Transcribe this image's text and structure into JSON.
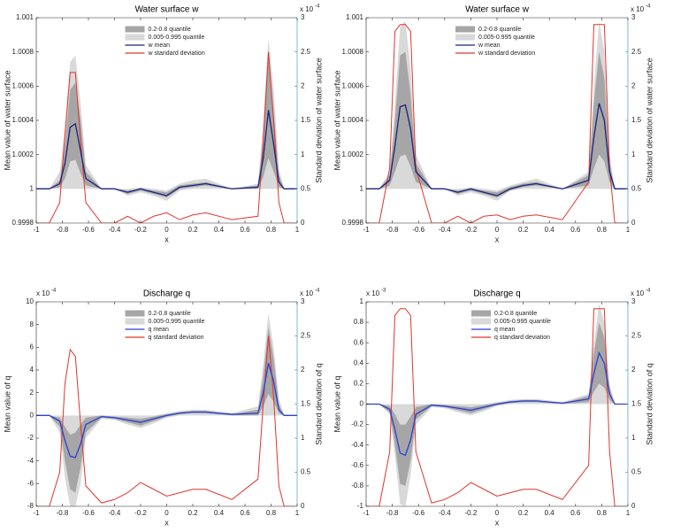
{
  "chart_data": [
    {
      "type": "line",
      "title": "Water surface w",
      "xlabel": "x",
      "ylabel": "Mean value of water surface",
      "y2label": "Standard deviation of water surface",
      "y2_multiplier": "x 10",
      "y2_exponent": "-4",
      "y2_color": "#2e86c1",
      "legend": "upper-center",
      "xlim": [
        -1,
        1
      ],
      "xticks": [
        -1,
        -0.8,
        -0.6,
        -0.4,
        -0.2,
        0,
        0.2,
        0.4,
        0.6,
        0.8,
        1
      ],
      "ylim": [
        0.9998,
        1.001
      ],
      "yticks": [
        0.9998,
        1,
        1.0002,
        1.0004,
        1.0006,
        1.0008,
        1.001
      ],
      "y2lim": [
        0,
        3
      ],
      "y2ticks": [
        0,
        0.5,
        1,
        1.5,
        2,
        2.5,
        3
      ],
      "x": [
        -1,
        -0.9,
        -0.82,
        -0.78,
        -0.74,
        -0.7,
        -0.66,
        -0.62,
        -0.5,
        -0.4,
        -0.3,
        -0.2,
        -0.1,
        0,
        0.1,
        0.2,
        0.3,
        0.5,
        0.7,
        0.74,
        0.78,
        0.82,
        0.86,
        0.9,
        1
      ],
      "series": [
        {
          "name": "0.2-0.8 quantile",
          "type": "band",
          "color": "#a6a6a6",
          "upper": [
            1,
            1,
            1.00005,
            1.00025,
            1.00058,
            1.00062,
            1.0004,
            1.0001,
            1,
            1,
            0.99999,
            1,
            0.99999,
            0.99998,
            1.00002,
            1.00003,
            1.00004,
            1,
            1.00002,
            1.0003,
            1.00076,
            1.00045,
            1.00008,
            1,
            1
          ],
          "lower": [
            1,
            1,
            1.00001,
            1.00006,
            1.00016,
            1.00017,
            1.00009,
            1.00002,
            1,
            1,
            0.99997,
            0.99999,
            0.99997,
            0.99995,
            1,
            1.00001,
            1.00002,
            1,
            1,
            1.00007,
            1.00018,
            1.0001,
            1.00001,
            1,
            1
          ]
        },
        {
          "name": "0.005-0.995 quantile",
          "type": "band",
          "color": "#d9d9d9",
          "upper": [
            1,
            1,
            1.0001,
            1.00035,
            1.00074,
            1.00078,
            1.0005,
            1.00014,
            1,
            1,
            1,
            1.00001,
            1,
            0.99999,
            1.00003,
            1.00005,
            1.00006,
            1,
            1.00003,
            1.0004,
            1.00088,
            1.00058,
            1.00012,
            1,
            1
          ],
          "lower": [
            1,
            1,
            1,
            1,
            1,
            1,
            1,
            1,
            1,
            1,
            0.99996,
            0.99998,
            0.99996,
            0.99993,
            0.99999,
            1,
            1,
            1,
            1,
            1,
            1,
            1,
            1,
            1,
            1
          ]
        },
        {
          "name": "w mean",
          "color": "#1a237e",
          "values": [
            1,
            1,
            1.00003,
            1.00015,
            1.00036,
            1.00038,
            1.00022,
            1.00006,
            1,
            1,
            0.99998,
            1,
            0.99998,
            0.99996,
            1.00001,
            1.00002,
            1.00003,
            1,
            1.00001,
            1.00018,
            1.00046,
            1.00026,
            1.00004,
            1,
            1
          ]
        },
        {
          "name": "w standard deviation",
          "color": "#e0352b",
          "axis": "y2",
          "values": [
            0,
            0,
            0.3,
            1.3,
            2.2,
            2.2,
            1.2,
            0.3,
            0,
            0,
            0.1,
            0,
            0.1,
            0.15,
            0.05,
            0.12,
            0.15,
            0.05,
            0.1,
            1.2,
            2.5,
            1.5,
            0.3,
            0,
            0
          ]
        }
      ]
    },
    {
      "type": "line",
      "title": "Water surface w",
      "xlabel": "x",
      "ylabel": "Mean value of water surface",
      "y2label": "Standard deviation of water surface",
      "y2_multiplier": "x 10",
      "y2_exponent": "-4",
      "y2_color": "#2e86c1",
      "legend": "upper-center",
      "xlim": [
        -1,
        1
      ],
      "xticks": [
        -1,
        -0.8,
        -0.6,
        -0.4,
        -0.2,
        0,
        0.2,
        0.4,
        0.6,
        0.8,
        1
      ],
      "ylim": [
        0.9998,
        1.001
      ],
      "yticks": [
        0.9998,
        1,
        1.0002,
        1.0004,
        1.0006,
        1.0008,
        1.001
      ],
      "y2lim": [
        0,
        3
      ],
      "y2ticks": [
        0,
        0.5,
        1,
        1.5,
        2,
        2.5,
        3
      ],
      "x": [
        -1,
        -0.9,
        -0.82,
        -0.78,
        -0.74,
        -0.7,
        -0.66,
        -0.62,
        -0.5,
        -0.4,
        -0.3,
        -0.2,
        -0.1,
        0,
        0.1,
        0.2,
        0.3,
        0.5,
        0.7,
        0.74,
        0.78,
        0.82,
        0.86,
        0.9,
        1
      ],
      "series": [
        {
          "name": "0.2-0.8 quantile",
          "type": "band",
          "color": "#a6a6a6",
          "upper": [
            1,
            1,
            1.00008,
            1.0004,
            1.00078,
            1.0008,
            1.00055,
            1.00015,
            1,
            1,
            0.99999,
            1,
            0.99999,
            0.99998,
            1.00001,
            1.00003,
            1.00004,
            1,
            1.00008,
            1.0005,
            1.0008,
            1.00065,
            1.00015,
            1,
            1
          ],
          "lower": [
            1,
            1,
            1.00002,
            1.0001,
            1.00019,
            1.0002,
            1.00013,
            1.00004,
            1,
            1,
            0.99997,
            0.99999,
            0.99997,
            0.99995,
            0.99999,
            1.00001,
            1.00002,
            1,
            1.00002,
            1.00012,
            1.0002,
            1.00016,
            1.00004,
            1,
            1
          ]
        },
        {
          "name": "0.005-0.995 quantile",
          "type": "band",
          "color": "#d9d9d9",
          "upper": [
            1,
            1,
            1.0001,
            1.0005,
            1.00095,
            1.00098,
            1.0007,
            1.0002,
            1,
            1,
            1,
            1.00001,
            1,
            0.99999,
            1.00002,
            1.00004,
            1.00006,
            1,
            1.0001,
            1.0006,
            1.00098,
            1.0008,
            1.0002,
            1,
            1
          ],
          "lower": [
            1,
            1,
            1,
            1,
            1,
            1,
            1,
            1,
            1,
            1,
            0.99996,
            0.99998,
            0.99996,
            0.99993,
            0.99999,
            1,
            1,
            1,
            1,
            1,
            1,
            1,
            1,
            1,
            1
          ]
        },
        {
          "name": "w mean",
          "color": "#1a237e",
          "values": [
            1,
            1,
            1.00005,
            1.00025,
            1.00048,
            1.00049,
            1.00035,
            1.0001,
            1,
            1,
            0.99998,
            1,
            0.99998,
            0.99996,
            1,
            1.00002,
            1.00003,
            1,
            1.00005,
            1.0003,
            1.0005,
            1.0004,
            1.0001,
            1,
            1
          ]
        },
        {
          "name": "w standard deviation",
          "color": "#e0352b",
          "axis": "y2",
          "values": [
            0,
            0,
            0.8,
            2.8,
            2.9,
            2.9,
            2.8,
            0.8,
            0,
            0,
            0.1,
            0,
            0.1,
            0.12,
            0.05,
            0.1,
            0.12,
            0.05,
            0.6,
            2.9,
            2.9,
            2.9,
            0.8,
            0,
            0
          ]
        }
      ]
    },
    {
      "type": "line",
      "title": "Discharge q",
      "xlabel": "x",
      "ylabel": "Mean value of q",
      "y2label": "Standard deviation of q",
      "y_multiplier": "x 10",
      "y_exponent": "-4",
      "y2_multiplier": "x 10",
      "y2_exponent": "-4",
      "y2_color": "#2e86c1",
      "legend": "upper-center",
      "xlim": [
        -1,
        1
      ],
      "xticks": [
        -1,
        -0.8,
        -0.6,
        -0.4,
        -0.2,
        0,
        0.2,
        0.4,
        0.6,
        0.8,
        1
      ],
      "ylim": [
        -8,
        10
      ],
      "yticks": [
        -8,
        -6,
        -4,
        -2,
        0,
        2,
        4,
        6,
        8,
        10
      ],
      "y2lim": [
        0,
        3
      ],
      "y2ticks": [
        0,
        0.5,
        1,
        1.5,
        2,
        2.5,
        3
      ],
      "x": [
        -1,
        -0.9,
        -0.82,
        -0.78,
        -0.74,
        -0.7,
        -0.66,
        -0.62,
        -0.5,
        -0.4,
        -0.3,
        -0.2,
        -0.1,
        0,
        0.1,
        0.2,
        0.3,
        0.5,
        0.7,
        0.74,
        0.78,
        0.82,
        0.86,
        0.9,
        1
      ],
      "series": [
        {
          "name": "0.2-0.8 quantile",
          "type": "band",
          "color": "#a6a6a6",
          "upper": [
            0,
            0,
            -0.2,
            -1,
            -1.7,
            -1.5,
            -0.8,
            -0.2,
            0,
            -0.1,
            -0.2,
            -0.3,
            -0.1,
            0.1,
            0.3,
            0.4,
            0.4,
            0.1,
            0.5,
            3.5,
            7.8,
            5,
            1,
            0,
            0
          ],
          "lower": [
            0,
            0,
            -1,
            -4,
            -6.5,
            -6.8,
            -4.5,
            -1.5,
            -0.2,
            -0.3,
            -0.6,
            -0.9,
            -0.5,
            -0.1,
            0.1,
            0.2,
            0.2,
            0,
            0,
            0.8,
            1.9,
            1.2,
            0.2,
            0,
            0
          ]
        },
        {
          "name": "0.005-0.995 quantile",
          "type": "band",
          "color": "#d9d9d9",
          "upper": [
            0,
            0,
            0,
            0,
            0,
            0,
            0,
            0,
            0,
            0,
            0,
            0,
            0,
            0.2,
            0.4,
            0.5,
            0.5,
            0.2,
            0.8,
            4.5,
            9,
            6,
            1.5,
            0,
            0
          ],
          "lower": [
            0,
            0,
            -1.5,
            -5.5,
            -8,
            -8,
            -6,
            -2,
            -0.3,
            -0.4,
            -0.8,
            -1.1,
            -0.7,
            -0.2,
            0,
            0,
            0,
            0,
            0,
            0,
            0,
            0,
            0,
            0,
            0
          ]
        },
        {
          "name": "q mean",
          "color": "#2b3fd6",
          "values": [
            0,
            0,
            -0.5,
            -2.2,
            -3.6,
            -3.7,
            -2.5,
            -0.8,
            -0.1,
            -0.2,
            -0.4,
            -0.6,
            -0.3,
            0,
            0.2,
            0.3,
            0.3,
            0.1,
            0.2,
            2,
            4.6,
            3,
            0.5,
            0,
            0
          ]
        },
        {
          "name": "q standard deviation",
          "color": "#e0352b",
          "axis": "y2",
          "values": [
            0,
            0,
            0.5,
            1.8,
            2.3,
            2.2,
            1.2,
            0.3,
            0.05,
            0.1,
            0.2,
            0.35,
            0.25,
            0.15,
            0.2,
            0.25,
            0.25,
            0.1,
            0.4,
            1.5,
            2.5,
            1.6,
            0.3,
            0,
            0
          ]
        }
      ]
    },
    {
      "type": "line",
      "title": "Discharge q",
      "xlabel": "x",
      "ylabel": "Mean value of q",
      "y2label": "Standard deviation of q",
      "y_multiplier": "x 10",
      "y_exponent": "-3",
      "y2_multiplier": "x 10",
      "y2_exponent": "-4",
      "y2_color": "#2e86c1",
      "legend": "upper-right",
      "xlim": [
        -1,
        1
      ],
      "xticks": [
        -1,
        -0.8,
        -0.6,
        -0.4,
        -0.2,
        0,
        0.2,
        0.4,
        0.6,
        0.8,
        1
      ],
      "ylim": [
        -1,
        1
      ],
      "yticks": [
        -1,
        -0.8,
        -0.6,
        -0.4,
        -0.2,
        0,
        0.2,
        0.4,
        0.6,
        0.8,
        1
      ],
      "y2lim": [
        0,
        3
      ],
      "y2ticks": [
        0,
        0.5,
        1,
        1.5,
        2,
        2.5,
        3
      ],
      "x": [
        -1,
        -0.9,
        -0.82,
        -0.78,
        -0.74,
        -0.7,
        -0.66,
        -0.62,
        -0.5,
        -0.4,
        -0.3,
        -0.2,
        -0.1,
        0,
        0.1,
        0.2,
        0.3,
        0.5,
        0.7,
        0.74,
        0.78,
        0.82,
        0.86,
        0.9,
        1
      ],
      "series": [
        {
          "name": "0.2-0.8 quantile",
          "type": "band",
          "color": "#a6a6a6",
          "upper": [
            0,
            0,
            -0.02,
            -0.1,
            -0.2,
            -0.2,
            -0.12,
            -0.03,
            0,
            -0.01,
            -0.02,
            -0.03,
            -0.01,
            0.01,
            0.03,
            0.04,
            0.04,
            0.01,
            0.08,
            0.5,
            0.8,
            0.65,
            0.15,
            0,
            0
          ],
          "lower": [
            0,
            0,
            -0.08,
            -0.4,
            -0.78,
            -0.8,
            -0.55,
            -0.15,
            -0.02,
            -0.03,
            -0.06,
            -0.09,
            -0.05,
            -0.01,
            0.01,
            0.02,
            0.02,
            0,
            0.02,
            0.12,
            0.2,
            0.16,
            0.04,
            0,
            0
          ]
        },
        {
          "name": "0.005-0.995 quantile",
          "type": "band",
          "color": "#d9d9d9",
          "upper": [
            0,
            0,
            0,
            0,
            0,
            0,
            0,
            0,
            0,
            0,
            0,
            0,
            0,
            0.02,
            0.04,
            0.05,
            0.05,
            0.02,
            0.1,
            0.6,
            0.98,
            0.8,
            0.2,
            0,
            0
          ],
          "lower": [
            0,
            0,
            -0.1,
            -0.5,
            -0.98,
            -1,
            -0.7,
            -0.2,
            -0.03,
            -0.04,
            -0.08,
            -0.11,
            -0.07,
            -0.02,
            0,
            0,
            0,
            0,
            0,
            0,
            0,
            0,
            0,
            0,
            0
          ]
        },
        {
          "name": "q mean",
          "color": "#2b3fd6",
          "values": [
            0,
            0,
            -0.05,
            -0.25,
            -0.48,
            -0.5,
            -0.35,
            -0.1,
            -0.01,
            -0.02,
            -0.04,
            -0.06,
            -0.03,
            0,
            0.02,
            0.03,
            0.03,
            0.01,
            0.05,
            0.3,
            0.5,
            0.4,
            0.1,
            0,
            0
          ]
        },
        {
          "name": "q standard deviation",
          "color": "#e0352b",
          "axis": "y2",
          "values": [
            0,
            0,
            0.8,
            2.8,
            2.9,
            2.9,
            2.8,
            0.8,
            0.05,
            0.1,
            0.2,
            0.35,
            0.25,
            0.15,
            0.2,
            0.25,
            0.25,
            0.1,
            0.6,
            2.9,
            2.9,
            2.9,
            0.8,
            0,
            0
          ]
        }
      ]
    }
  ]
}
